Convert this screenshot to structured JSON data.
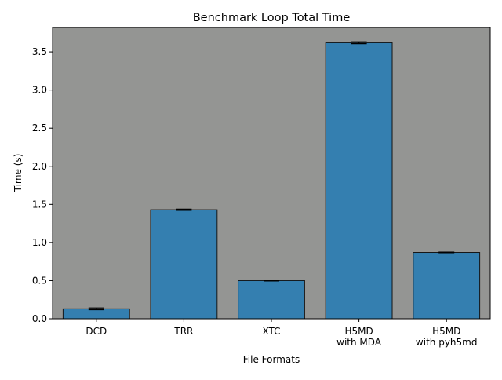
{
  "chart_data": {
    "type": "bar",
    "title": "Benchmark Loop Total Time",
    "xlabel": "File Formats",
    "ylabel": "Time (s)",
    "categories": [
      [
        "DCD"
      ],
      [
        "TRR"
      ],
      [
        "XTC"
      ],
      [
        "H5MD",
        "with MDA"
      ],
      [
        "H5MD",
        "with pyh5md"
      ]
    ],
    "values": [
      0.13,
      1.43,
      0.5,
      3.62,
      0.87
    ],
    "errors": [
      0.012,
      0.008,
      0.005,
      0.012,
      0.004
    ],
    "ylim": [
      0,
      3.82
    ],
    "yticks": [
      "0.0",
      "0.5",
      "1.0",
      "1.5",
      "2.0",
      "2.5",
      "3.0",
      "3.5"
    ],
    "grid": false,
    "colors": {
      "plot_background": "#949593",
      "bar_fill": "#347fb0",
      "bar_edge": "#151515",
      "error_bar": "#000000"
    }
  }
}
